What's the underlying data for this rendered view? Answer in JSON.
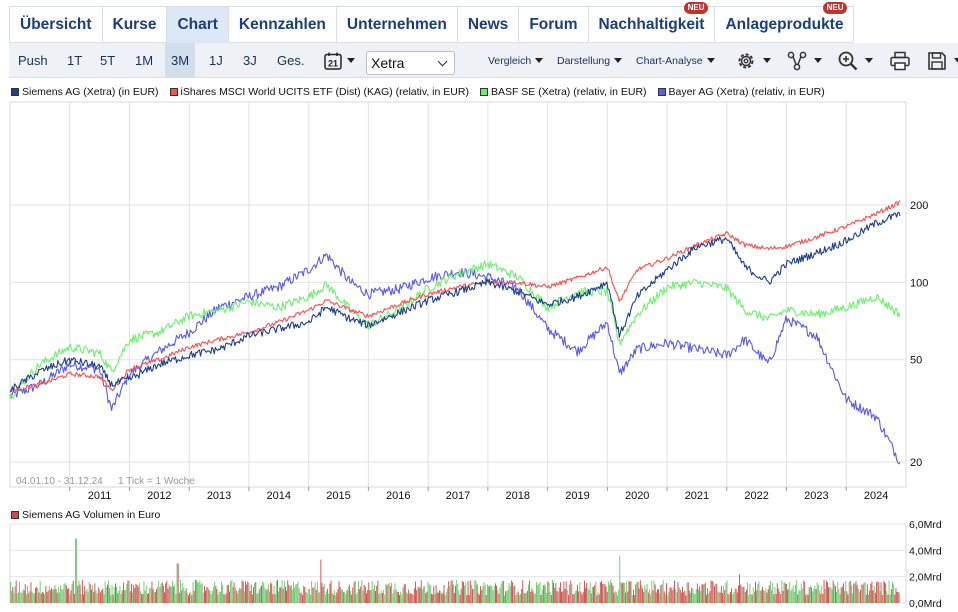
{
  "tabs": [
    {
      "label": "Übersicht",
      "active": false,
      "badge": ""
    },
    {
      "label": "Kurse",
      "active": false,
      "badge": ""
    },
    {
      "label": "Chart",
      "active": true,
      "badge": ""
    },
    {
      "label": "Kennzahlen",
      "active": false,
      "badge": ""
    },
    {
      "label": "Unternehmen",
      "active": false,
      "badge": ""
    },
    {
      "label": "News",
      "active": false,
      "badge": ""
    },
    {
      "label": "Forum",
      "active": false,
      "badge": ""
    },
    {
      "label": "Nachhaltigkeit",
      "active": false,
      "badge": "NEU"
    },
    {
      "label": "Anlageprodukte",
      "active": false,
      "badge": "NEU"
    }
  ],
  "toolbar": {
    "push": "Push",
    "ranges": [
      "1T",
      "5T",
      "1M",
      "3M",
      "1J",
      "3J",
      "Ges."
    ],
    "active_range": "3M",
    "calendar_day": "21",
    "exchange": "Xetra",
    "compare": "Vergleich",
    "display": "Darstellung",
    "analysis": "Chart-Analyse"
  },
  "legend": [
    {
      "label": "Siemens AG (Xetra) (in EUR)",
      "color": "#1f3f8f"
    },
    {
      "label": "iShares MSCI World UCITS ETF (Dist) (KAG) (relativ, in EUR)",
      "color": "#ff4e4e"
    },
    {
      "label": "BASF SE (Xetra) (relativ, in EUR)",
      "color": "#6ef06e"
    },
    {
      "label": "Bayer AG (Xetra) (relativ, in EUR)",
      "color": "#5a5aee"
    }
  ],
  "volume_legend": {
    "label": "Siemens AG Volumen in Euro",
    "color": "#d04848"
  },
  "chart_data": {
    "type": "line",
    "date_range": "04.01.10 - 31.12.24",
    "tick_info": "1 Tick = 1 Woche",
    "y_scale": "log",
    "y_ticks": [
      20,
      50,
      100,
      200
    ],
    "x_ticks": [
      "2011",
      "2012",
      "2013",
      "2014",
      "2015",
      "2016",
      "2017",
      "2018",
      "2019",
      "2020",
      "2021",
      "2022",
      "2023",
      "2024"
    ],
    "x": [
      2010.0,
      2010.5,
      2011.0,
      2011.5,
      2011.7,
      2012.0,
      2012.5,
      2013.0,
      2013.5,
      2014.0,
      2014.5,
      2015.0,
      2015.3,
      2015.7,
      2016.0,
      2016.5,
      2017.0,
      2017.5,
      2018.0,
      2018.5,
      2019.0,
      2019.5,
      2020.0,
      2020.2,
      2020.5,
      2021.0,
      2021.5,
      2022.0,
      2022.3,
      2022.7,
      2023.0,
      2023.5,
      2024.0,
      2024.5,
      2024.9
    ],
    "series": [
      {
        "name": "Siemens AG (Xetra) (in EUR)",
        "color": "#1f3f8f",
        "values": [
          38,
          45,
          50,
          47,
          40,
          42,
          48,
          52,
          55,
          62,
          66,
          70,
          80,
          72,
          68,
          76,
          85,
          92,
          100,
          92,
          82,
          88,
          100,
          62,
          88,
          112,
          138,
          148,
          115,
          100,
          118,
          130,
          145,
          170,
          185
        ]
      },
      {
        "name": "iShares MSCI World UCITS ETF (Dist) (KAG) (relativ, in EUR)",
        "color": "#ff4e4e",
        "values": [
          38,
          40,
          44,
          43,
          38,
          46,
          50,
          56,
          60,
          64,
          70,
          78,
          85,
          78,
          74,
          82,
          90,
          96,
          100,
          100,
          96,
          104,
          115,
          84,
          112,
          124,
          140,
          155,
          140,
          135,
          138,
          150,
          165,
          185,
          205
        ]
      },
      {
        "name": "BASF SE (Xetra) (relativ, in EUR)",
        "color": "#6ef06e",
        "values": [
          36,
          48,
          56,
          53,
          45,
          60,
          64,
          74,
          78,
          84,
          80,
          88,
          98,
          78,
          68,
          78,
          95,
          108,
          118,
          105,
          80,
          92,
          92,
          58,
          75,
          96,
          100,
          95,
          78,
          72,
          78,
          75,
          80,
          88,
          75
        ]
      },
      {
        "name": "Bayer AG (Xetra) (relativ, in EUR)",
        "color": "#5a5aee",
        "values": [
          36,
          40,
          48,
          46,
          32,
          44,
          54,
          64,
          80,
          88,
          96,
          112,
          128,
          100,
          90,
          94,
          104,
          110,
          105,
          95,
          66,
          54,
          70,
          44,
          55,
          58,
          55,
          52,
          60,
          48,
          72,
          62,
          35,
          30,
          20
        ]
      }
    ],
    "volume": {
      "name": "Siemens AG Volumen in Euro",
      "y_ticks": [
        "0,0Mrd",
        "2,0Mrd",
        "4,0Mrd",
        "6,0Mrd"
      ],
      "ylim": [
        0,
        6.0
      ],
      "typical": 1.3,
      "peaks": [
        {
          "x": 2011.1,
          "value": 4.9
        },
        {
          "x": 2012.8,
          "value": 3.0
        },
        {
          "x": 2015.2,
          "value": 3.3
        },
        {
          "x": 2020.2,
          "value": 3.6
        },
        {
          "x": 2022.2,
          "value": 2.2
        }
      ]
    }
  }
}
